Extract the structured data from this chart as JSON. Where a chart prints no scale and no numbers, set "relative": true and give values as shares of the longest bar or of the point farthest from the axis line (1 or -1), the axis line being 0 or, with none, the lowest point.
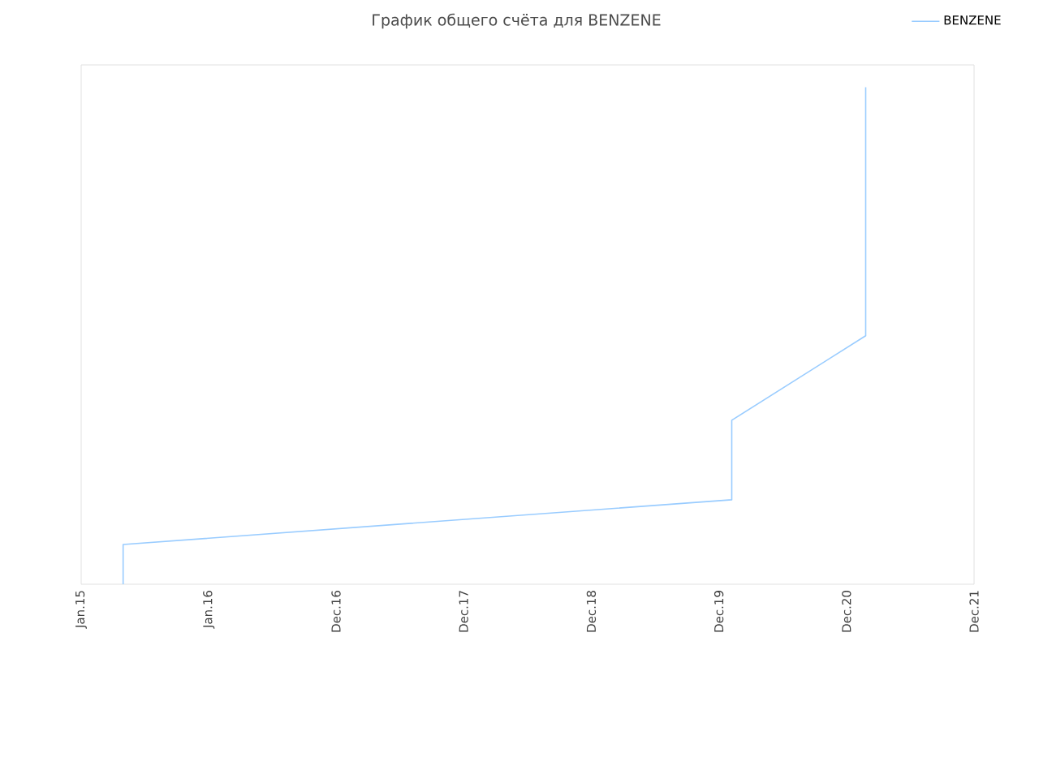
{
  "chart_data": {
    "type": "line",
    "title": "График общего счёта для BENZENE",
    "x": [
      "2015-05-01",
      "2015-05-01",
      "2020-02-06",
      "2020-02-06",
      "2021-02-24",
      "2021-02-24"
    ],
    "series": [
      {
        "name": "BENZENE",
        "color": "#99ccff",
        "values": [
          0,
          0.08,
          0.17,
          0.33,
          0.5,
          1
        ]
      }
    ],
    "relative": true,
    "xlim": [
      "2015-01-01",
      "2021-12-31"
    ],
    "xticks": [
      {
        "value": "2015-01-01",
        "label": "Jan.15"
      },
      {
        "value": "2016-01-01",
        "label": "Jan.16"
      },
      {
        "value": "2016-12-31",
        "label": "Dec.16"
      },
      {
        "value": "2017-12-31",
        "label": "Dec.17"
      },
      {
        "value": "2018-12-31",
        "label": "Dec.18"
      },
      {
        "value": "2019-12-31",
        "label": "Dec.19"
      },
      {
        "value": "2020-12-31",
        "label": "Dec.20"
      },
      {
        "value": "2021-12-31",
        "label": "Dec.21"
      }
    ],
    "legend": "top right",
    "marker": "none",
    "line_style": "solid"
  }
}
